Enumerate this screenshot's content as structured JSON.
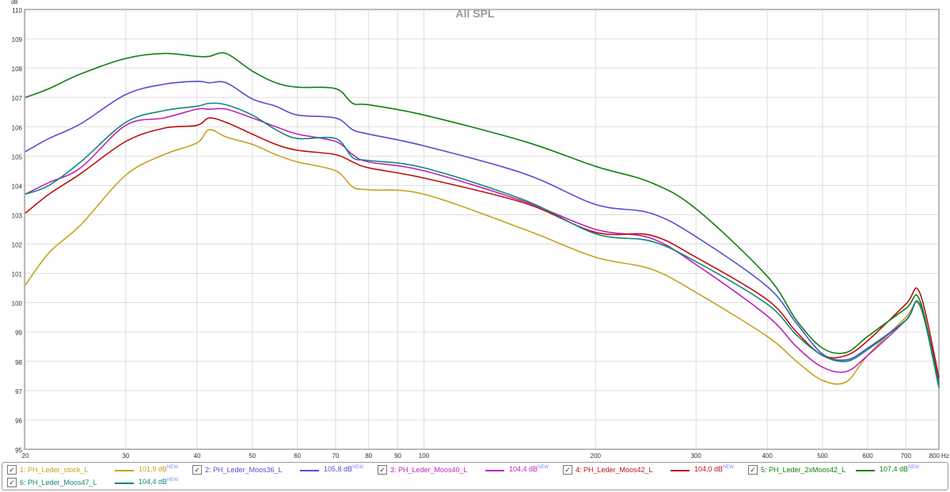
{
  "chart_data": {
    "type": "line",
    "title": "All SPL",
    "ylabel": "dB",
    "xlabel": "Hz",
    "xscale": "log",
    "xlim": [
      20,
      800
    ],
    "ylim": [
      95,
      110
    ],
    "yticks": [
      95,
      96,
      97,
      98,
      99,
      100,
      101,
      102,
      103,
      104,
      105,
      106,
      107,
      108,
      109,
      110
    ],
    "xticks": [
      20,
      30,
      40,
      50,
      60,
      70,
      80,
      90,
      100,
      200,
      300,
      400,
      500,
      600,
      700,
      800
    ],
    "xtick_labels": [
      "20",
      "30",
      "40",
      "50",
      "60",
      "70",
      "80",
      "90",
      "100",
      "200",
      "300",
      "400",
      "500",
      "600",
      "700",
      "800"
    ],
    "grid": true,
    "x": [
      20,
      22,
      25,
      30,
      35,
      40,
      42,
      45,
      50,
      55,
      60,
      70,
      75,
      80,
      100,
      150,
      200,
      250,
      300,
      400,
      450,
      500,
      550,
      600,
      700,
      740,
      800
    ],
    "series": [
      {
        "name": "1: PH_Leder_stock_L",
        "level": "101,9 dB",
        "color": "#c8a020",
        "values": [
          100.6,
          101.7,
          102.65,
          104.35,
          105.05,
          105.45,
          105.9,
          105.65,
          105.4,
          105.05,
          104.8,
          104.5,
          103.95,
          103.85,
          103.7,
          102.5,
          101.55,
          101.15,
          100.35,
          98.85,
          98.0,
          97.35,
          97.3,
          98.2,
          99.5,
          99.9,
          97.4
        ]
      },
      {
        "name": "2: PH_Leder_Moos36_L",
        "level": "105,8 dB",
        "color": "#5050d0",
        "values": [
          105.15,
          105.6,
          106.1,
          107.1,
          107.45,
          107.55,
          107.5,
          107.5,
          106.95,
          106.7,
          106.4,
          106.3,
          105.9,
          105.75,
          105.35,
          104.4,
          103.35,
          103.05,
          102.25,
          100.55,
          99.3,
          98.25,
          98.05,
          98.45,
          99.4,
          99.95,
          97.3
        ]
      },
      {
        "name": "3: PH_Leder_Moos40_L",
        "level": "104,4 dB",
        "color": "#c020c0",
        "values": [
          103.7,
          104.1,
          104.6,
          106.05,
          106.3,
          106.6,
          106.6,
          106.6,
          106.3,
          106.0,
          105.75,
          105.5,
          105.05,
          104.8,
          104.5,
          103.45,
          102.5,
          102.2,
          101.3,
          99.55,
          98.5,
          97.8,
          97.65,
          98.2,
          99.4,
          99.95,
          97.4
        ]
      },
      {
        "name": "4: PH_Leder_Moos42_L",
        "level": "104,0 dB",
        "color": "#c01010",
        "values": [
          103.05,
          103.7,
          104.4,
          105.5,
          105.95,
          106.05,
          106.3,
          106.15,
          105.75,
          105.4,
          105.2,
          105.05,
          104.8,
          104.6,
          104.25,
          103.4,
          102.4,
          102.3,
          101.55,
          100.1,
          99.0,
          98.2,
          98.2,
          98.7,
          99.95,
          100.35,
          97.45
        ]
      },
      {
        "name": "5: PH_Leder_2xMoos42_L",
        "level": "107,4 dB",
        "color": "#108010",
        "values": [
          107.0,
          107.3,
          107.8,
          108.33,
          108.5,
          108.4,
          108.4,
          108.5,
          107.9,
          107.5,
          107.35,
          107.3,
          106.8,
          106.75,
          106.4,
          105.5,
          104.65,
          104.1,
          103.2,
          100.9,
          99.4,
          98.45,
          98.3,
          98.85,
          99.8,
          100.1,
          97.2
        ]
      },
      {
        "name": "6: PH_Leder_Moos47_L",
        "level": "104,4 dB",
        "color": "#108878",
        "values": [
          103.7,
          104.0,
          104.8,
          106.15,
          106.55,
          106.7,
          106.8,
          106.75,
          106.4,
          105.9,
          105.6,
          105.6,
          104.95,
          104.85,
          104.6,
          103.5,
          102.35,
          102.1,
          101.4,
          99.95,
          98.9,
          98.2,
          98.0,
          98.4,
          99.4,
          99.95,
          97.1
        ]
      }
    ]
  },
  "legend": {
    "new_badge": "NEW",
    "check": "✓"
  }
}
